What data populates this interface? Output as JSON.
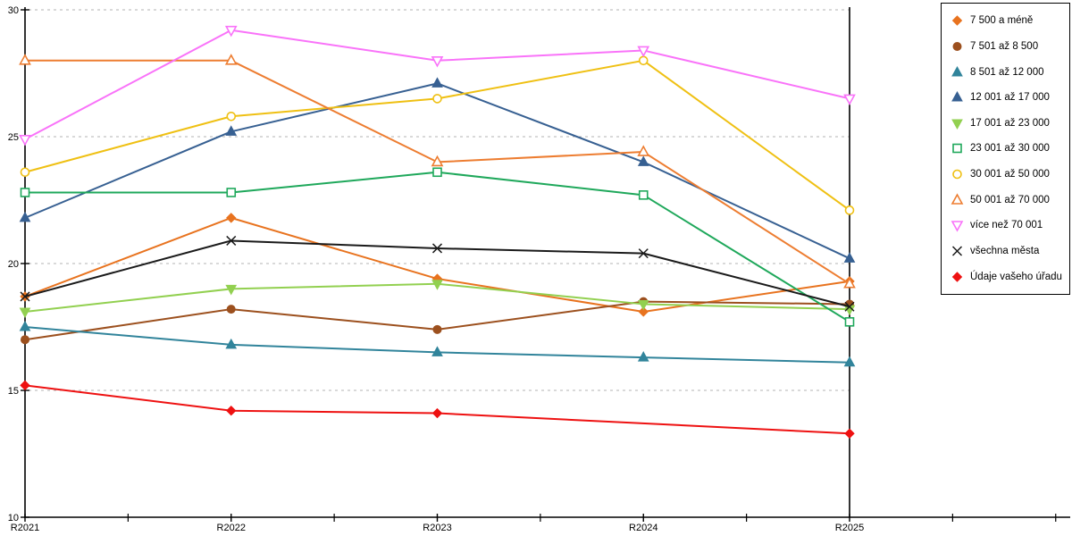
{
  "chart_data": {
    "type": "line",
    "title": "",
    "xlabel": "",
    "ylabel": "",
    "categories": [
      "R2021",
      "R2022",
      "R2023",
      "R2024",
      "R2025"
    ],
    "ylim": [
      10,
      30
    ],
    "y_ticks": [
      10,
      15,
      20,
      25,
      30
    ],
    "grid": "horizontal dashed gridlines at 15, 20, 25, 30",
    "legend_position": "right",
    "series": [
      {
        "name": "7 500 a méně",
        "marker": "diamond",
        "fill": "solid",
        "color": "#e8731f",
        "values": [
          18.7,
          21.8,
          19.4,
          18.1,
          19.3
        ]
      },
      {
        "name": "7 501 až 8 500",
        "marker": "circle",
        "fill": "solid",
        "color": "#9c501e",
        "values": [
          17.0,
          18.2,
          17.4,
          18.5,
          18.4
        ]
      },
      {
        "name": "8 501 až 12 000",
        "marker": "triangle-up",
        "fill": "solid",
        "color": "#31849b",
        "values": [
          17.5,
          16.8,
          16.5,
          16.3,
          16.1
        ]
      },
      {
        "name": "12 001 až 17 000",
        "marker": "triangle-up",
        "fill": "solid",
        "color": "#376092",
        "values": [
          21.8,
          25.2,
          27.1,
          24.0,
          20.2
        ]
      },
      {
        "name": "17 001 až 23 000",
        "marker": "triangle-down",
        "fill": "solid",
        "color": "#92d050",
        "values": [
          18.1,
          19.0,
          19.2,
          18.4,
          18.2
        ]
      },
      {
        "name": "23 001 až 30 000",
        "marker": "square",
        "fill": "open",
        "color": "#1fa85b",
        "values": [
          22.8,
          22.8,
          23.6,
          22.7,
          17.7
        ]
      },
      {
        "name": "30 001 až 50 000",
        "marker": "circle",
        "fill": "open",
        "color": "#efc013",
        "values": [
          23.6,
          25.8,
          26.5,
          28.0,
          22.1
        ]
      },
      {
        "name": "50 001 až 70 000",
        "marker": "triangle-up",
        "fill": "open",
        "color": "#ed7d31",
        "values": [
          28.0,
          28.0,
          24.0,
          24.4,
          19.2
        ]
      },
      {
        "name": "více než 70 001",
        "marker": "triangle-down",
        "fill": "open",
        "color": "#f973f9",
        "values": [
          24.9,
          29.2,
          28.0,
          28.4,
          26.5
        ]
      },
      {
        "name": "všechna města",
        "marker": "x",
        "fill": "line",
        "color": "#1a1a1a",
        "values": [
          18.7,
          20.9,
          20.6,
          20.4,
          18.3
        ]
      },
      {
        "name": "Údaje vašeho úřadu",
        "marker": "diamond",
        "fill": "solid",
        "color": "#ee1111",
        "values": [
          15.2,
          14.2,
          14.1,
          null,
          13.3
        ]
      }
    ]
  },
  "axes": {
    "x_tick_labels": [
      "R2021",
      "R2022",
      "R2023",
      "R2024",
      "R2025"
    ],
    "y_tick_labels": [
      "10",
      "15",
      "20",
      "25",
      "30"
    ]
  },
  "colors": {
    "background": "#ffffff",
    "axis": "#000000",
    "gridline": "#b3b3b3",
    "legend_border": "#000000",
    "text": "#000000"
  }
}
